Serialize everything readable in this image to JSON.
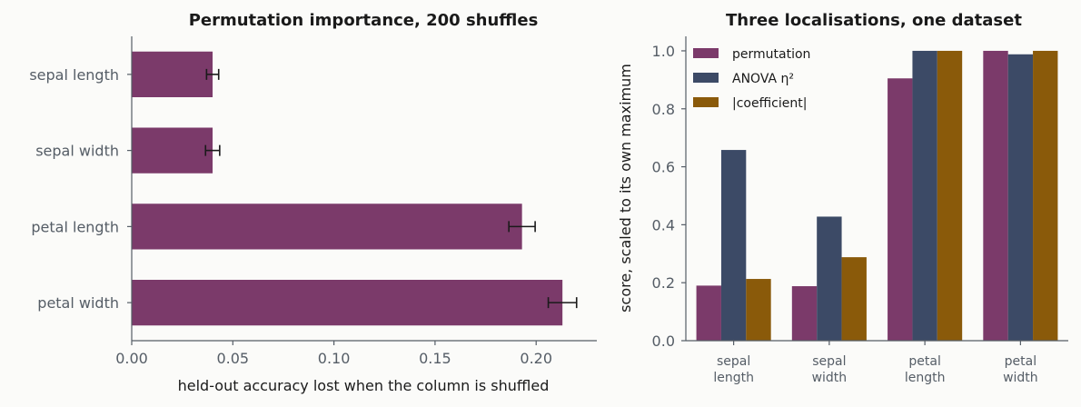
{
  "chart_data": [
    {
      "type": "bar",
      "orientation": "horizontal",
      "title": "Permutation importance, 200 shuffles",
      "xlabel": "held-out accuracy lost when the column is shuffled",
      "ylabel": "",
      "xlim": [
        0,
        0.23
      ],
      "xticks": [
        "0.00",
        "0.05",
        "0.10",
        "0.15",
        "0.20"
      ],
      "categories": [
        "sepal length",
        "sepal width",
        "petal length",
        "petal width"
      ],
      "values": [
        0.04,
        0.04,
        0.193,
        0.213
      ],
      "errors": [
        0.003,
        0.0035,
        0.0065,
        0.007
      ],
      "color": "#7b3a6a"
    },
    {
      "type": "bar",
      "title": "Three localisations, one dataset",
      "xlabel": "",
      "ylabel": "score, scaled to its own maximum",
      "ylim": [
        0,
        1.05
      ],
      "yticks": [
        "0.0",
        "0.2",
        "0.4",
        "0.6",
        "0.8",
        "1.0"
      ],
      "categories": [
        [
          "sepal",
          "length"
        ],
        [
          "sepal",
          "width"
        ],
        [
          "petal",
          "length"
        ],
        [
          "petal",
          "width"
        ]
      ],
      "legend_position": "top-left",
      "series": [
        {
          "name": "permutation",
          "color": "#7b3a6a",
          "values": [
            0.19,
            0.188,
            0.905,
            1.0
          ]
        },
        {
          "name": "ANOVA η²",
          "color": "#3c4a66",
          "values": [
            0.658,
            0.428,
            1.0,
            0.988
          ]
        },
        {
          "name": "|coefficient|",
          "color": "#8a5a0a",
          "values": [
            0.213,
            0.288,
            1.0,
            1.0
          ]
        }
      ]
    }
  ]
}
